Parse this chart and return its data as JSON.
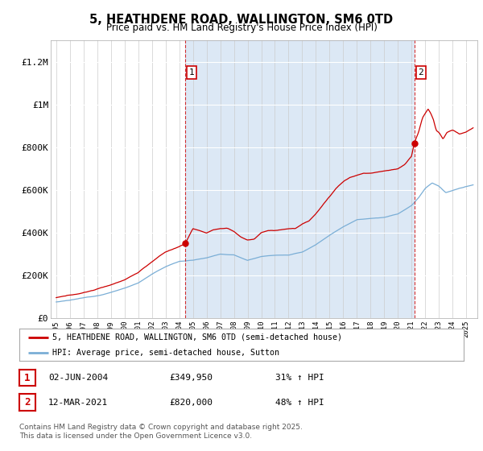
{
  "title": "5, HEATHDENE ROAD, WALLINGTON, SM6 0TD",
  "subtitle": "Price paid vs. HM Land Registry's House Price Index (HPI)",
  "ylim": [
    0,
    1300000
  ],
  "yticks": [
    0,
    200000,
    400000,
    600000,
    800000,
    1000000,
    1200000
  ],
  "ytick_labels": [
    "£0",
    "£200K",
    "£400K",
    "£600K",
    "£800K",
    "£1M",
    "£1.2M"
  ],
  "red_color": "#cc0000",
  "blue_color": "#7aaed6",
  "shade_color": "#dce8f5",
  "vline1_x": 2004.42,
  "vline2_x": 2021.19,
  "marker1_x": 2004.42,
  "marker1_y": 349950,
  "marker2_x": 2021.19,
  "marker2_y": 820000,
  "sale1_label": "1",
  "sale1_date": "02-JUN-2004",
  "sale1_price": "£349,950",
  "sale1_hpi": "31% ↑ HPI",
  "sale2_label": "2",
  "sale2_date": "12-MAR-2021",
  "sale2_price": "£820,000",
  "sale2_hpi": "48% ↑ HPI",
  "legend1_text": "5, HEATHDENE ROAD, WALLINGTON, SM6 0TD (semi-detached house)",
  "legend2_text": "HPI: Average price, semi-detached house, Sutton",
  "footer": "Contains HM Land Registry data © Crown copyright and database right 2025.\nThis data is licensed under the Open Government Licence v3.0.",
  "xlim_left": 1994.6,
  "xlim_right": 2025.8
}
